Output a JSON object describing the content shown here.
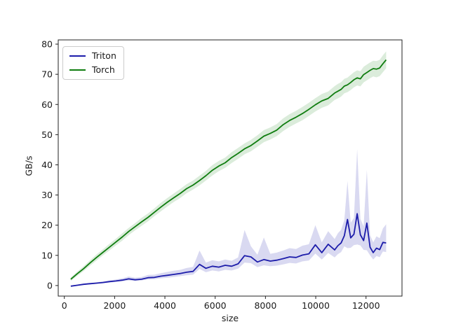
{
  "figure": {
    "background": "#ffffff",
    "text_color": "#1a1a1a",
    "spine_color": "#222222"
  },
  "chart_data": {
    "type": "line",
    "title": "",
    "xlabel": "size",
    "ylabel": "GB/s",
    "grid": false,
    "legend_position": "upper left",
    "xlim": [
      -243,
      13431
    ],
    "ylim": [
      -3.5,
      81.4
    ],
    "x_ticks": [
      0,
      2000,
      4000,
      6000,
      8000,
      10000,
      12000
    ],
    "y_ticks": [
      0,
      10,
      20,
      30,
      40,
      50,
      60,
      70,
      80
    ],
    "x": [
      256,
      512,
      768,
      1024,
      1280,
      1536,
      1792,
      2048,
      2304,
      2560,
      2816,
      3072,
      3328,
      3584,
      3840,
      4096,
      4352,
      4608,
      4864,
      5120,
      5376,
      5632,
      5888,
      6144,
      6400,
      6656,
      6912,
      7168,
      7424,
      7680,
      7936,
      8192,
      8448,
      8704,
      8960,
      9216,
      9472,
      9728,
      9984,
      10240,
      10496,
      10752,
      10880,
      11008,
      11136,
      11264,
      11392,
      11520,
      11648,
      11776,
      11904,
      12032,
      12160,
      12288,
      12416,
      12544,
      12672,
      12800
    ],
    "series": [
      {
        "name": "Triton",
        "color": "#1c1caa",
        "band_opacity": 0.17,
        "mean": [
          -0.2,
          0.1,
          0.4,
          0.6,
          0.8,
          1.0,
          1.3,
          1.5,
          1.8,
          2.2,
          1.9,
          2.1,
          2.6,
          2.7,
          3.1,
          3.4,
          3.7,
          4.0,
          4.4,
          4.7,
          7.0,
          5.7,
          6.4,
          6.1,
          6.7,
          6.4,
          7.2,
          9.9,
          9.5,
          7.8,
          8.6,
          8.1,
          8.4,
          8.9,
          9.5,
          9.3,
          10.1,
          10.5,
          13.5,
          10.9,
          13.7,
          11.8,
          13.2,
          14.1,
          16.5,
          21.9,
          15.8,
          17.0,
          23.8,
          16.8,
          14.9,
          20.7,
          12.7,
          10.9,
          12.4,
          11.9,
          14.3,
          14.1
        ],
        "lo": [
          -0.4,
          -0.1,
          0.2,
          0.4,
          0.6,
          0.8,
          1.0,
          1.2,
          1.4,
          1.7,
          1.5,
          1.7,
          2.0,
          2.1,
          2.4,
          2.6,
          2.8,
          3.1,
          3.4,
          3.6,
          5.5,
          4.4,
          5.0,
          4.7,
          5.2,
          5.0,
          5.6,
          7.6,
          7.4,
          6.1,
          6.7,
          6.4,
          6.6,
          7.0,
          7.5,
          7.3,
          8.0,
          8.3,
          10.6,
          8.6,
          10.8,
          9.3,
          10.4,
          11.1,
          13.0,
          12.4,
          12.5,
          13.4,
          13.6,
          13.3,
          11.8,
          11.7,
          10.0,
          8.6,
          9.8,
          9.4,
          11.3,
          11.1
        ],
        "hi": [
          0.0,
          0.3,
          0.7,
          0.9,
          1.1,
          1.4,
          1.7,
          2.0,
          2.4,
          3.0,
          2.6,
          2.8,
          3.5,
          3.6,
          4.1,
          4.5,
          4.9,
          5.2,
          5.8,
          6.2,
          11.6,
          7.6,
          8.4,
          8.0,
          8.6,
          8.2,
          9.3,
          18.4,
          13.0,
          10.2,
          15.9,
          10.5,
          10.9,
          11.6,
          12.4,
          12.1,
          13.2,
          13.7,
          20.0,
          14.3,
          18.0,
          15.4,
          17.3,
          18.5,
          21.7,
          34.6,
          20.8,
          22.4,
          45.2,
          22.1,
          19.6,
          38.3,
          16.7,
          14.3,
          16.3,
          15.7,
          18.9,
          20.3
        ]
      },
      {
        "name": "Torch",
        "color": "#0f7d0f",
        "band_opacity": 0.15,
        "mean": [
          2.1,
          3.9,
          5.6,
          7.5,
          9.3,
          11.0,
          12.7,
          14.4,
          16.1,
          17.9,
          19.5,
          21.1,
          22.6,
          24.3,
          26.0,
          27.6,
          29.1,
          30.5,
          32.1,
          33.3,
          34.8,
          36.4,
          38.2,
          39.6,
          40.7,
          42.4,
          43.8,
          45.3,
          46.4,
          47.9,
          49.5,
          50.4,
          51.5,
          53.3,
          54.7,
          55.8,
          57.0,
          58.4,
          59.9,
          61.2,
          62.0,
          63.8,
          64.4,
          65.0,
          66.1,
          66.5,
          67.3,
          68.2,
          68.8,
          68.5,
          69.9,
          70.6,
          71.3,
          71.9,
          71.7,
          72.1,
          73.5,
          74.8
        ],
        "lo": [
          1.5,
          3.2,
          4.8,
          6.6,
          8.3,
          10.0,
          11.6,
          13.3,
          14.9,
          16.7,
          18.3,
          19.8,
          21.3,
          23.0,
          24.6,
          26.2,
          27.7,
          29.0,
          30.6,
          31.8,
          33.2,
          34.8,
          36.5,
          37.9,
          39.0,
          40.6,
          42.0,
          43.5,
          44.5,
          46.0,
          47.5,
          48.4,
          49.5,
          51.2,
          52.6,
          53.7,
          54.8,
          56.2,
          57.7,
          58.9,
          59.7,
          61.5,
          62.0,
          62.6,
          63.7,
          64.1,
          64.8,
          65.7,
          66.3,
          66.0,
          67.3,
          68.0,
          68.7,
          69.3,
          69.0,
          69.4,
          70.7,
          72.0
        ],
        "hi": [
          2.7,
          4.6,
          6.4,
          8.4,
          10.3,
          12.0,
          13.8,
          15.5,
          17.3,
          19.1,
          20.7,
          22.4,
          23.9,
          25.6,
          27.4,
          29.0,
          30.5,
          32.0,
          33.6,
          34.8,
          36.4,
          38.0,
          39.9,
          41.3,
          42.4,
          44.2,
          45.6,
          47.1,
          48.3,
          49.8,
          51.5,
          52.4,
          53.5,
          55.4,
          56.8,
          57.9,
          59.2,
          60.6,
          62.1,
          63.5,
          64.3,
          66.1,
          66.8,
          67.4,
          68.5,
          68.9,
          69.8,
          70.7,
          71.3,
          71.0,
          72.5,
          73.2,
          73.9,
          74.5,
          74.4,
          74.8,
          76.3,
          77.6
        ]
      }
    ]
  }
}
